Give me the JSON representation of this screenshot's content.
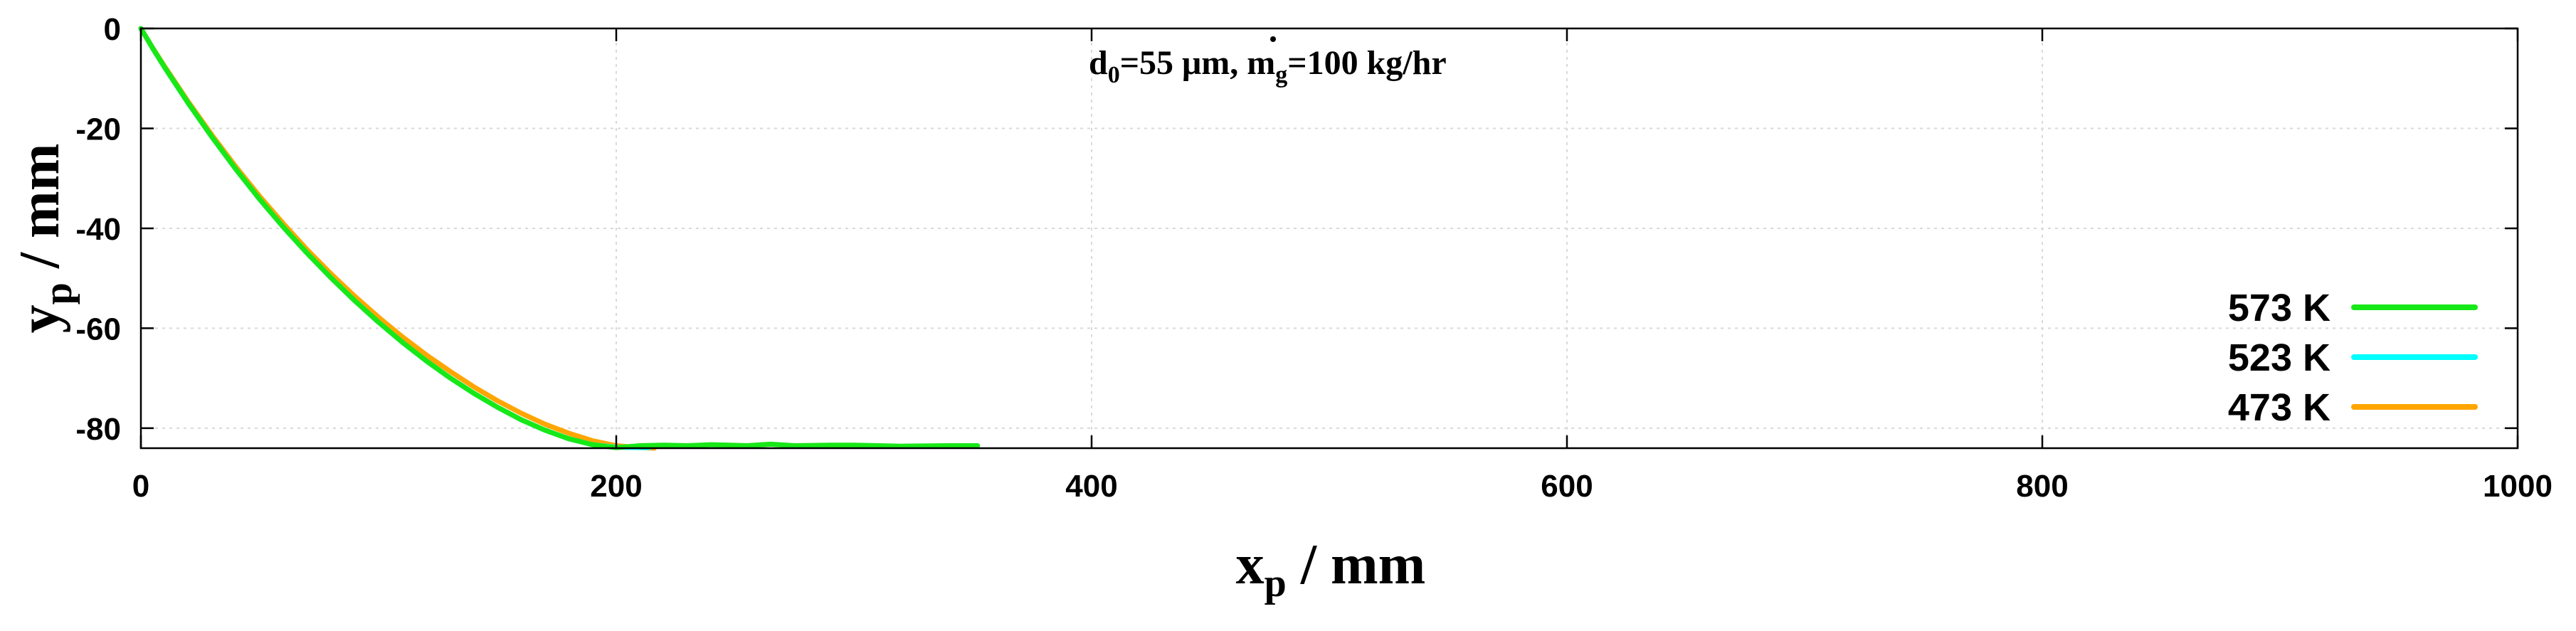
{
  "chart_data": {
    "type": "line",
    "xlabel": {
      "main": "x",
      "sub": "p",
      "rest": " / mm"
    },
    "ylabel": {
      "main": "y",
      "sub": "p",
      "rest": " / mm"
    },
    "xlim": [
      0,
      1000
    ],
    "ylim": [
      -84,
      0
    ],
    "xticks": [
      0,
      200,
      400,
      600,
      800,
      1000
    ],
    "yticks": [
      0,
      -20,
      -40,
      -60,
      -80
    ],
    "grid": true,
    "legend_position": "bottom-right",
    "annotation": {
      "d": "d",
      "d_sub": "0",
      "d_value": "=55 μm, ",
      "m": "m",
      "m_sub": "g",
      "m_value": "=100 kg/hr"
    },
    "series": [
      {
        "name": "573 K",
        "color": "#17e817",
        "points": [
          [
            0,
            0
          ],
          [
            5,
            -4
          ],
          [
            10,
            -7.8
          ],
          [
            20,
            -15
          ],
          [
            30,
            -21.8
          ],
          [
            40,
            -28.2
          ],
          [
            50,
            -34.2
          ],
          [
            60,
            -39.8
          ],
          [
            70,
            -45
          ],
          [
            80,
            -49.9
          ],
          [
            90,
            -54.5
          ],
          [
            100,
            -58.8
          ],
          [
            110,
            -62.8
          ],
          [
            120,
            -66.5
          ],
          [
            130,
            -69.9
          ],
          [
            140,
            -73
          ],
          [
            150,
            -75.8
          ],
          [
            160,
            -78.3
          ],
          [
            170,
            -80.4
          ],
          [
            180,
            -82.1
          ],
          [
            190,
            -83.3
          ],
          [
            200,
            -83.9
          ],
          [
            210,
            -83.5
          ],
          [
            220,
            -83.4
          ],
          [
            230,
            -83.5
          ],
          [
            240,
            -83.3
          ],
          [
            255,
            -83.5
          ],
          [
            265,
            -83.2
          ],
          [
            275,
            -83.5
          ],
          [
            290,
            -83.4
          ],
          [
            300,
            -83.4
          ],
          [
            320,
            -83.6
          ],
          [
            340,
            -83.5
          ],
          [
            352,
            -83.5
          ]
        ]
      },
      {
        "name": "523 K",
        "color": "#00ffff",
        "points": [
          [
            0,
            0
          ],
          [
            5,
            -4
          ],
          [
            10,
            -7.8
          ],
          [
            20,
            -15
          ],
          [
            30,
            -21.8
          ],
          [
            40,
            -28.2
          ],
          [
            50,
            -34.2
          ],
          [
            60,
            -39.8
          ],
          [
            70,
            -45
          ],
          [
            80,
            -49.9
          ],
          [
            90,
            -54.5
          ],
          [
            100,
            -58.8
          ],
          [
            110,
            -62.8
          ],
          [
            120,
            -66.5
          ],
          [
            130,
            -69.9
          ],
          [
            140,
            -73
          ],
          [
            150,
            -75.8
          ],
          [
            160,
            -78.3
          ],
          [
            170,
            -80.4
          ],
          [
            180,
            -82.1
          ],
          [
            190,
            -83.3
          ],
          [
            200,
            -83.8
          ],
          [
            214,
            -83.9
          ]
        ]
      },
      {
        "name": "473 K",
        "color": "#ffa500",
        "points": [
          [
            0,
            0
          ],
          [
            5,
            -3.9
          ],
          [
            10,
            -7.6
          ],
          [
            20,
            -14.7
          ],
          [
            30,
            -21.4
          ],
          [
            40,
            -27.7
          ],
          [
            50,
            -33.6
          ],
          [
            60,
            -39.1
          ],
          [
            70,
            -44.3
          ],
          [
            80,
            -49.1
          ],
          [
            90,
            -53.6
          ],
          [
            100,
            -57.8
          ],
          [
            110,
            -61.7
          ],
          [
            120,
            -65.3
          ],
          [
            130,
            -68.6
          ],
          [
            140,
            -71.7
          ],
          [
            150,
            -74.5
          ],
          [
            160,
            -77
          ],
          [
            170,
            -79.2
          ],
          [
            180,
            -81
          ],
          [
            190,
            -82.5
          ],
          [
            200,
            -83.5
          ],
          [
            210,
            -83.9
          ],
          [
            216,
            -84
          ]
        ]
      }
    ]
  }
}
